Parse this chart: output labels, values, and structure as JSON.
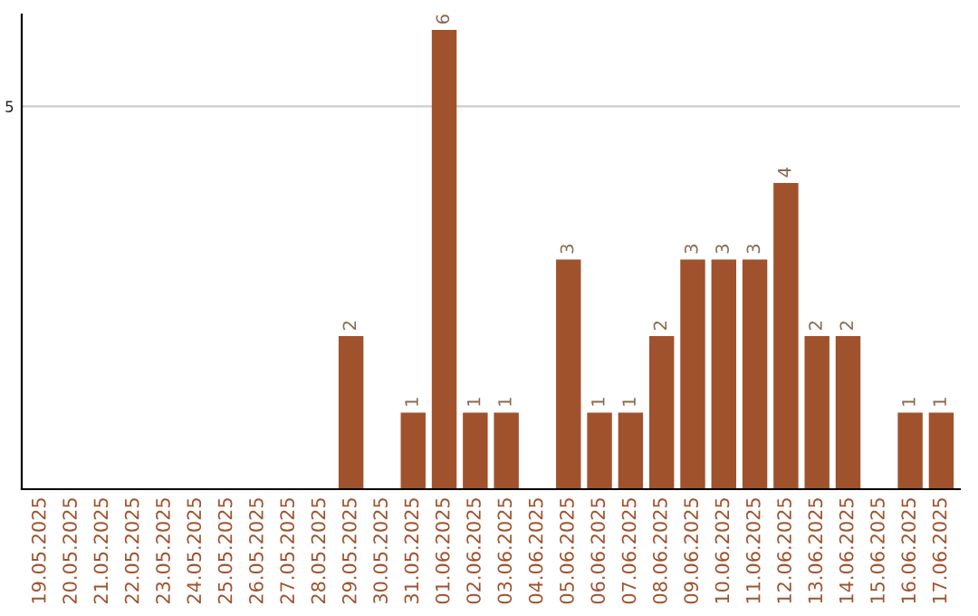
{
  "chart_data": {
    "type": "bar",
    "categories": [
      "19.05.2025",
      "20.05.2025",
      "21.05.2025",
      "22.05.2025",
      "23.05.2025",
      "24.05.2025",
      "25.05.2025",
      "26.05.2025",
      "27.05.2025",
      "28.05.2025",
      "29.05.2025",
      "30.05.2025",
      "31.05.2025",
      "01.06.2025",
      "02.06.2025",
      "03.06.2025",
      "04.06.2025",
      "05.06.2025",
      "06.06.2025",
      "07.06.2025",
      "08.06.2025",
      "09.06.2025",
      "10.06.2025",
      "11.06.2025",
      "12.06.2025",
      "13.06.2025",
      "14.06.2025",
      "15.06.2025",
      "16.06.2025",
      "17.06.2025"
    ],
    "values": [
      0,
      0,
      0,
      0,
      0,
      0,
      0,
      0,
      0,
      0,
      2,
      0,
      1,
      6,
      1,
      1,
      0,
      3,
      1,
      1,
      2,
      3,
      3,
      3,
      4,
      2,
      2,
      0,
      1,
      1
    ],
    "value_labels": [
      null,
      null,
      null,
      null,
      null,
      null,
      null,
      null,
      null,
      null,
      "2",
      null,
      "1",
      "6",
      "1",
      "1",
      null,
      "3",
      "1",
      "1",
      "2",
      "3",
      "3",
      "3",
      "4",
      "2",
      "2",
      null,
      "1",
      "1"
    ],
    "color": "#a0522d",
    "ylim": [
      0,
      6.2
    ],
    "yticks": [
      5
    ],
    "grid": "y"
  }
}
